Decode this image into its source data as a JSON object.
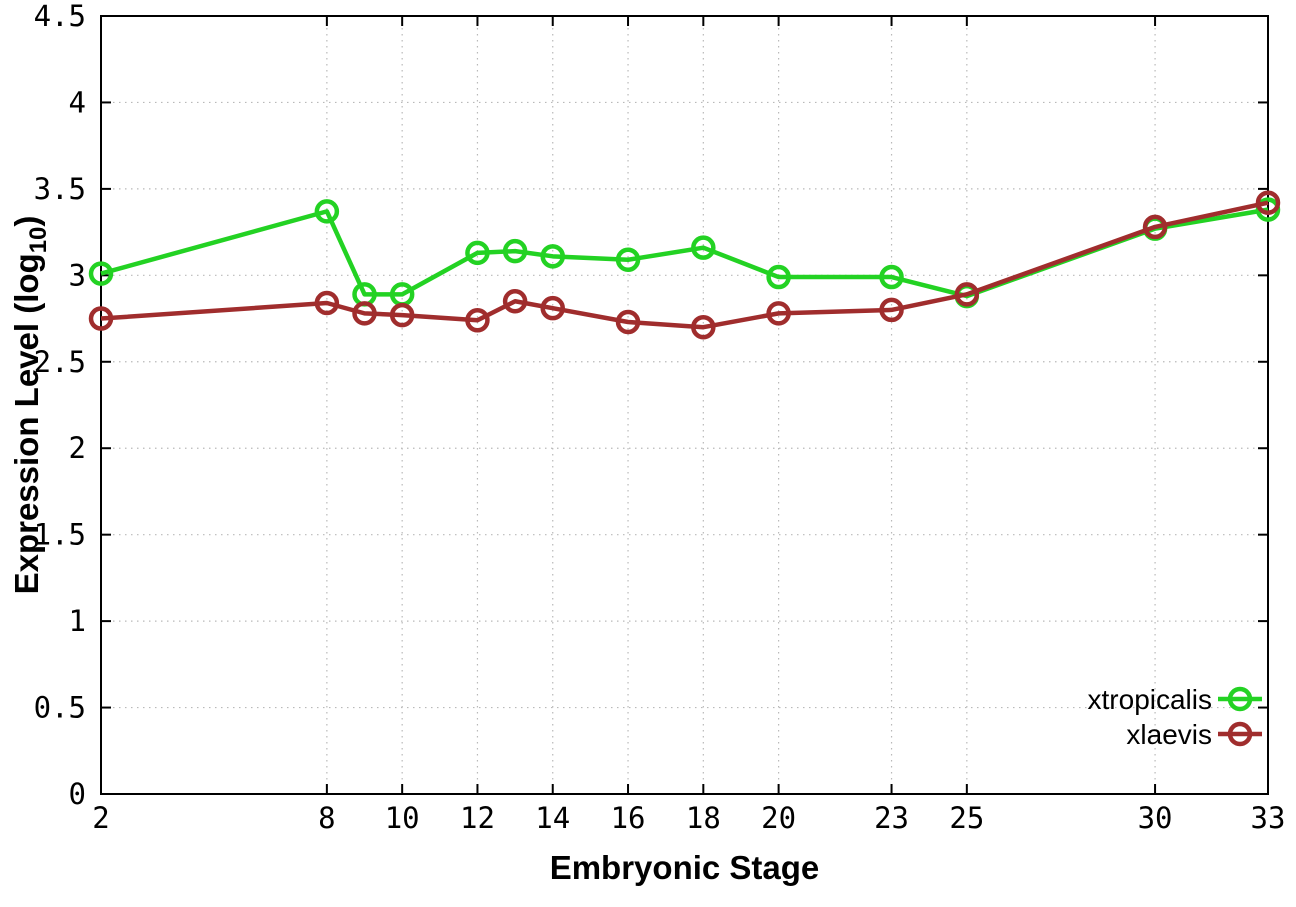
{
  "chart_data": {
    "type": "line",
    "title": "",
    "xlabel": "Embryonic Stage",
    "ylabel_parts": {
      "pre": "Expression Level (log",
      "sub": "10",
      "post": ")"
    },
    "xlim": [
      2,
      33
    ],
    "ylim": [
      0,
      4.5
    ],
    "xticks": [
      2,
      8,
      10,
      12,
      14,
      16,
      18,
      20,
      23,
      25,
      30,
      33
    ],
    "xtick_labels": [
      "2",
      "8",
      "10",
      "12",
      "14",
      "16",
      "18",
      "20",
      "23",
      "25",
      "30",
      "33"
    ],
    "yticks": [
      0,
      0.5,
      1,
      1.5,
      2,
      2.5,
      3,
      3.5,
      4,
      4.5
    ],
    "ytick_labels": [
      "0",
      "0.5",
      "1",
      "1.5",
      "2",
      "2.5",
      "3",
      "3.5",
      "4",
      "4.5"
    ],
    "grid": true,
    "legend_position": "bottom-right",
    "x": [
      2,
      8,
      9,
      10,
      12,
      13,
      14,
      16,
      18,
      20,
      23,
      25,
      30,
      33
    ],
    "series": [
      {
        "name": "xtropicalis",
        "color": "#23d223",
        "values": [
          3.01,
          3.37,
          2.89,
          2.89,
          3.13,
          3.14,
          3.11,
          3.09,
          3.16,
          2.99,
          2.99,
          2.88,
          3.27,
          3.38
        ]
      },
      {
        "name": "xlaevis",
        "color": "#a02d2d",
        "values": [
          2.75,
          2.84,
          2.78,
          2.77,
          2.74,
          2.85,
          2.81,
          2.73,
          2.7,
          2.78,
          2.8,
          2.89,
          3.28,
          3.42
        ]
      }
    ],
    "colors": {
      "axis": "#000000",
      "grid": "#b9b9b9",
      "background": "#ffffff",
      "text": "#000000"
    }
  }
}
